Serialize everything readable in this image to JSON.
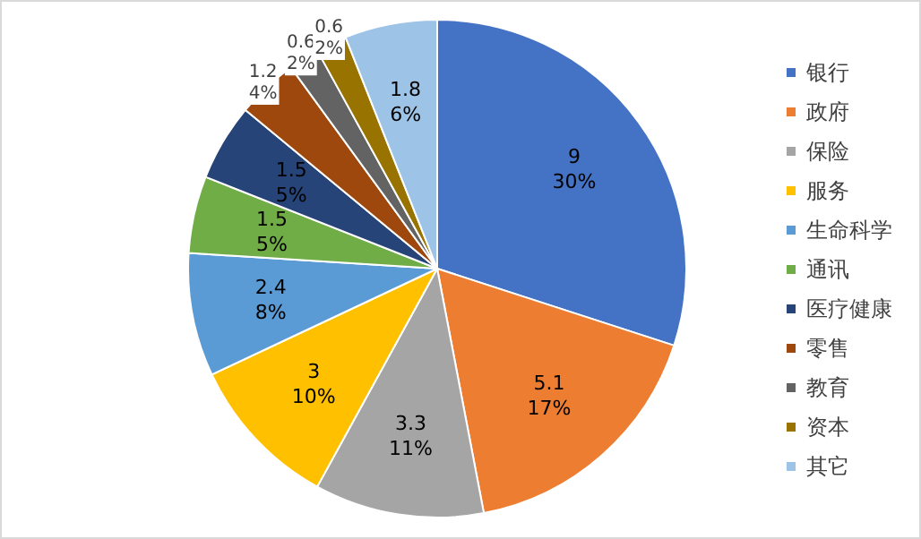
{
  "chart_data": {
    "type": "pie",
    "categories": [
      "银行",
      "政府",
      "保险",
      "服务",
      "生命科学",
      "通讯",
      "医疗健康",
      "零售",
      "教育",
      "资本",
      "其它"
    ],
    "values": [
      9,
      5.1,
      3.3,
      3,
      2.4,
      1.5,
      1.5,
      1.2,
      0.6,
      0.6,
      1.8
    ],
    "colors": [
      "#4472c4",
      "#ed7d31",
      "#a5a5a5",
      "#ffc000",
      "#5b9bd5",
      "#70ad47",
      "#264478",
      "#9e480e",
      "#636363",
      "#997300",
      "#9dc3e6"
    ],
    "value_labels": [
      "9\n30%",
      "5.1\n17%",
      "3.3\n11%",
      "3\n10%",
      "2.4\n8%",
      "1.5\n5%",
      "1.5\n5%",
      "1.2\n4%",
      "0.6\n2%",
      "0.6\n2%",
      "1.8\n6%"
    ],
    "legend": "right"
  }
}
